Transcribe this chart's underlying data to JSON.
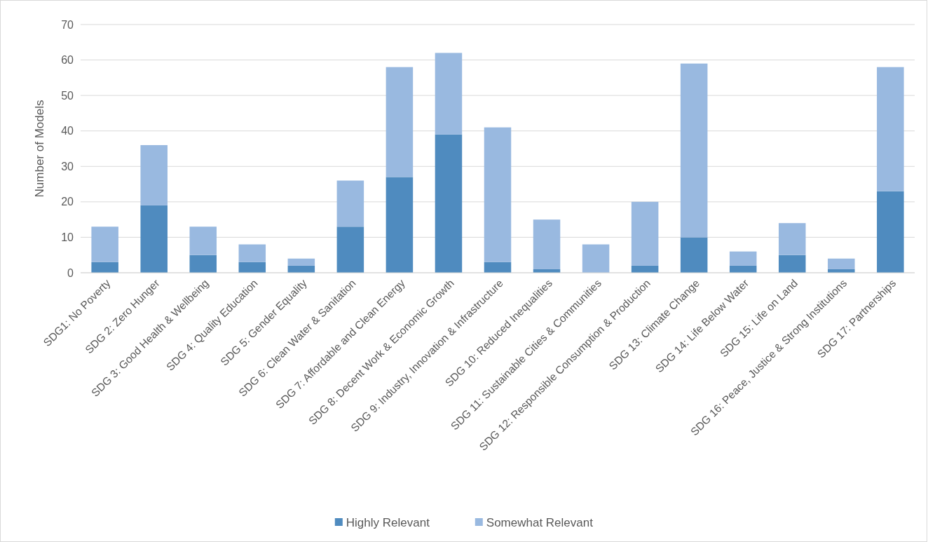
{
  "chart_data": {
    "type": "bar",
    "stacked": true,
    "ylabel": "Number of Models",
    "categories": [
      "SDG1: No Poverty",
      "SDG 2: Zero Hunger",
      "SDG 3: Good Health & Wellbeing",
      "SDG 4: Quality Education",
      "SDG 5: Gender Equality",
      "SDG 6: Clean Water & Sanitation",
      "SDG 7: Affordable and Clean Energy",
      "SDG 8: Decent Work & Economic Growth",
      "SDG 9: Industry, Innovation & Infrastructure",
      "SDG 10: Reduced Inequalities",
      "SDG 11: Sustainable Cities & Communities",
      "SDG 12: Responsible Consumption & Production",
      "SDG 13: Climate Change",
      "SDG 14: Life Below Water",
      "SDG 15: Life on Land",
      "SDG 16: Peace, Justice & Strong Institutions",
      "SDG 17: Partnerships"
    ],
    "series": [
      {
        "name": "Highly Relevant",
        "color": "#4f8bbf",
        "values": [
          3,
          19,
          5,
          3,
          2,
          13,
          27,
          39,
          3,
          1,
          0,
          2,
          10,
          2,
          5,
          1,
          23
        ]
      },
      {
        "name": "Somewhat Relevant",
        "color": "#99b9e0",
        "values": [
          10,
          17,
          8,
          5,
          2,
          13,
          31,
          23,
          38,
          14,
          8,
          18,
          49,
          4,
          9,
          3,
          35
        ]
      }
    ],
    "ylim": [
      0,
      70
    ],
    "yticks": [
      0,
      10,
      20,
      30,
      40,
      50,
      60,
      70
    ],
    "grid": "y",
    "legend": "bottom"
  }
}
